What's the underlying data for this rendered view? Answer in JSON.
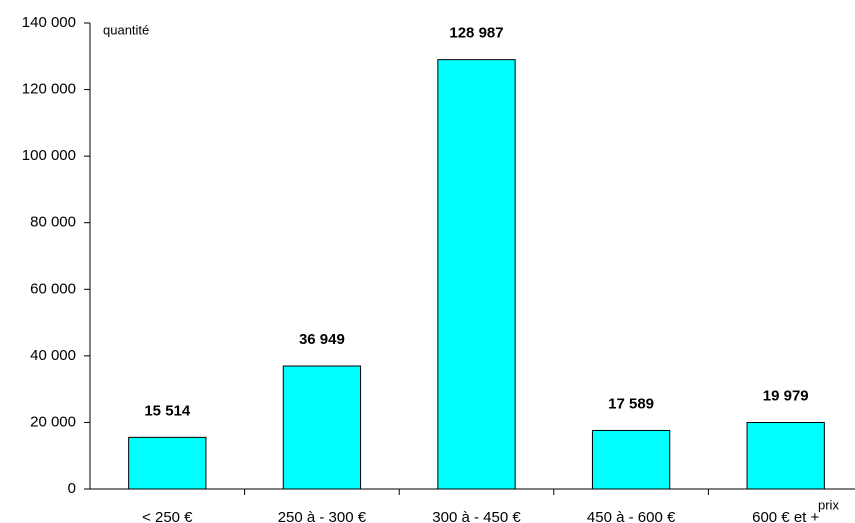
{
  "chart_data": {
    "type": "bar",
    "y_label": "quantité",
    "x_label": "prix",
    "categories": [
      "< 250 €",
      "250 à - 300 €",
      "300 à - 450 €",
      "450 à - 600 €",
      "600 € et +"
    ],
    "values": [
      15514,
      36949,
      128987,
      17589,
      19979
    ],
    "value_labels": [
      "15 514",
      "36 949",
      "128 987",
      "17 589",
      "19 979"
    ],
    "color": "#00ffff",
    "ylim": [
      0,
      140000
    ],
    "yticks": [
      0,
      {
        "value": 20000,
        "label": "20 000"
      },
      {
        "value": 40000,
        "label": "40 000"
      },
      {
        "value": 60000,
        "label": "60 000"
      },
      {
        "value": 80000,
        "label": "80 000"
      },
      {
        "value": 100000,
        "label": "100 000"
      },
      {
        "value": 120000,
        "label": "120 000"
      },
      {
        "value": 140000,
        "label": "140 000"
      }
    ],
    "grid": false
  }
}
